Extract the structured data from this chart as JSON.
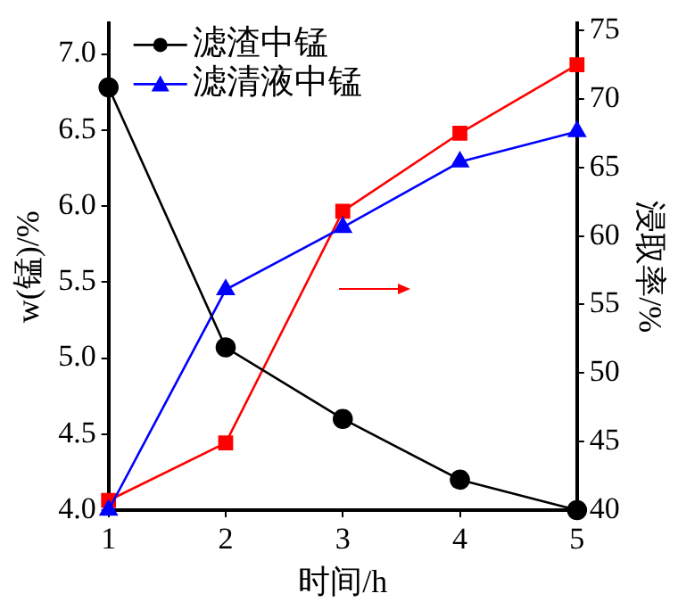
{
  "chart_data": {
    "type": "line",
    "xlabel": "时间/h",
    "ylabel": "w(锰)/%",
    "y2label": "浸取率/%",
    "x": [
      1,
      2,
      3,
      4,
      5
    ],
    "xlim": [
      1,
      5
    ],
    "xticks": [
      1,
      2,
      3,
      4,
      5
    ],
    "ylim": [
      4.0,
      7.2
    ],
    "yticks": [
      {
        "value": 4.0,
        "label": "4.0"
      },
      {
        "value": 4.5,
        "label": "4.5"
      },
      {
        "value": 5.0,
        "label": "5.0"
      },
      {
        "value": 5.5,
        "label": "5.5"
      },
      {
        "value": 6.0,
        "label": "6.0"
      },
      {
        "value": 6.5,
        "label": "6.5"
      },
      {
        "value": 7.0,
        "label": "7.0"
      }
    ],
    "y2lim": [
      40,
      75.5
    ],
    "y2ticks": [
      40,
      45,
      50,
      55,
      60,
      65,
      70,
      75
    ],
    "series": [
      {
        "name": "滤渣中锰",
        "color": "#000000",
        "marker": "circle",
        "values": [
          6.78,
          5.07,
          4.6,
          4.2,
          4.0
        ]
      },
      {
        "name": "滤清液中锰",
        "color": "#0000ff",
        "marker": "triangle",
        "values": [
          4.0,
          5.45,
          5.86,
          6.29,
          6.49
        ]
      },
      {
        "color": "#ff0000",
        "marker": "square",
        "axis": "y2",
        "values": [
          40.7,
          44.9,
          61.8,
          67.5,
          72.5
        ]
      }
    ],
    "legend": "top left",
    "grid": false
  }
}
